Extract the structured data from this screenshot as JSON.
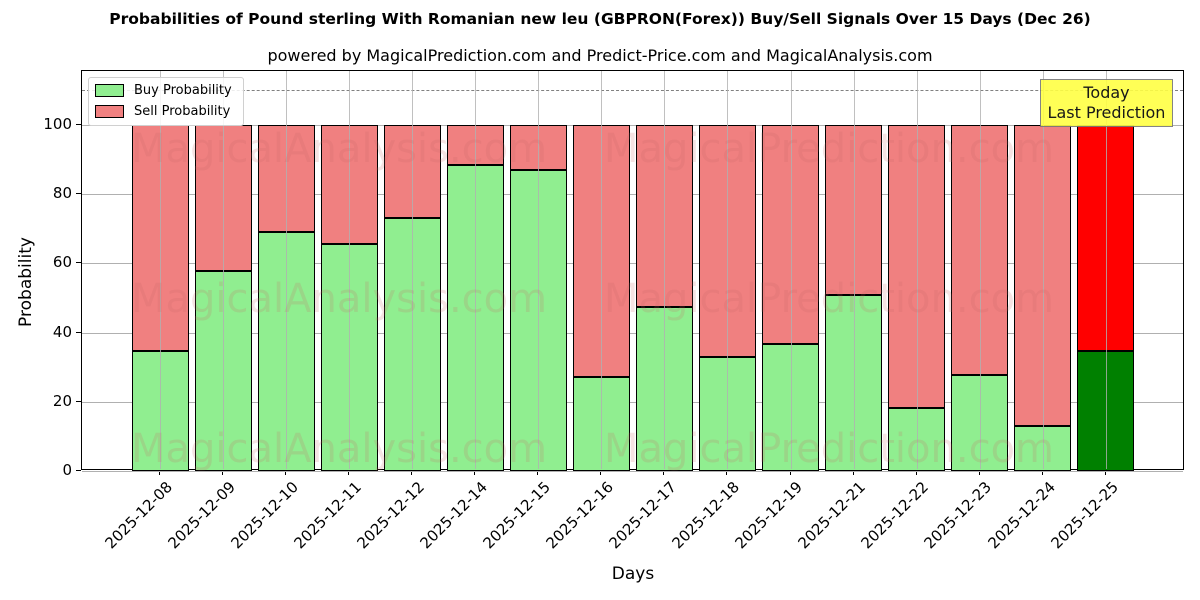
{
  "header": {
    "title": "Probabilities of Pound sterling With Romanian new leu (GBPRON(Forex)) Buy/Sell Signals Over 15 Days (Dec 26)",
    "subtitle": "powered by MagicalPrediction.com and Predict-Price.com and MagicalAnalysis.com"
  },
  "legend": {
    "buy_label": "Buy Probability",
    "sell_label": "Sell Probability"
  },
  "annotation": {
    "line1": "Today",
    "line2": "Last Prediction"
  },
  "watermarks": [
    "MagicalAnalysis.com",
    "MagicalPrediction.com"
  ],
  "colors": {
    "buy": "#90ee90",
    "sell": "#f08080",
    "today_buy": "#008000",
    "today_sell": "#ff0000",
    "annotation_bg": "#ffff44"
  },
  "chart_data": {
    "type": "bar",
    "stacked": true,
    "title": "Probabilities of Pound sterling With Romanian new leu (GBPRON(Forex)) Buy/Sell Signals Over 15 Days (Dec 26)",
    "subtitle": "powered by MagicalPrediction.com and Predict-Price.com and MagicalAnalysis.com",
    "xlabel": "Days",
    "ylabel": "Probability",
    "ylim": [
      0,
      115
    ],
    "yticks": [
      0,
      20,
      40,
      60,
      80,
      100
    ],
    "reference_line": 110,
    "grid": true,
    "legend_position": "upper left",
    "categories": [
      "2025-12-08",
      "2025-12-09",
      "2025-12-10",
      "2025-12-11",
      "2025-12-12",
      "2025-12-14",
      "2025-12-15",
      "2025-12-16",
      "2025-12-17",
      "2025-12-18",
      "2025-12-19",
      "2025-12-21",
      "2025-12-22",
      "2025-12-23",
      "2025-12-24",
      "2025-12-25"
    ],
    "series": [
      {
        "name": "Buy Probability",
        "values": [
          34.7,
          57.8,
          69.1,
          65.6,
          73.1,
          88.4,
          87.0,
          27.2,
          47.4,
          32.9,
          36.7,
          50.9,
          18.2,
          27.7,
          13.0,
          34.7
        ]
      },
      {
        "name": "Sell Probability",
        "values": [
          65.3,
          42.2,
          30.9,
          34.4,
          26.9,
          11.6,
          13.0,
          72.8,
          52.6,
          67.1,
          63.3,
          49.1,
          81.8,
          72.3,
          87.0,
          65.3
        ]
      }
    ],
    "annotations": [
      {
        "text": "Today\nLast Prediction",
        "x": "2025-12-25"
      }
    ]
  }
}
